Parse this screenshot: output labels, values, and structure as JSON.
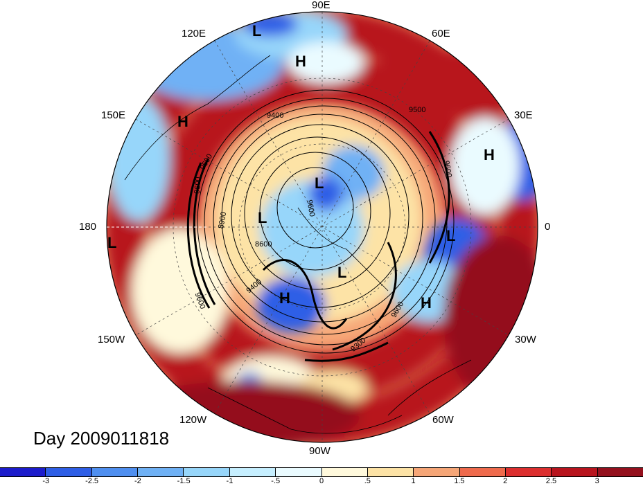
{
  "title": "Day 2009011818",
  "longitude_labels": {
    "lon_90e": "90E",
    "lon_120e": "120E",
    "lon_60e": "60E",
    "lon_150e": "150E",
    "lon_30e": "30E",
    "lon_180": "180",
    "lon_0": "0",
    "lon_150w": "150W",
    "lon_30w": "30W",
    "lon_120w": "120W",
    "lon_60w": "60W",
    "lon_90w": "90W"
  },
  "pressure_centers": [
    {
      "type": "L",
      "label": "L"
    },
    {
      "type": "H",
      "label": "H"
    },
    {
      "type": "H",
      "label": "H"
    },
    {
      "type": "L",
      "label": "L"
    },
    {
      "type": "H",
      "label": "H"
    },
    {
      "type": "L",
      "label": "L"
    },
    {
      "type": "L",
      "label": "L"
    },
    {
      "type": "L",
      "label": "L"
    },
    {
      "type": "L",
      "label": "L"
    },
    {
      "type": "H",
      "label": "H"
    },
    {
      "type": "H",
      "label": "H"
    }
  ],
  "contour_labels": [
    "9400",
    "9500",
    "9600",
    "9600",
    "9600",
    "8900",
    "8600",
    "9400",
    "9600",
    "9300",
    "9600",
    "9600"
  ],
  "colorbar": {
    "ticks": [
      "-3",
      "-2.5",
      "-2",
      "-1.5",
      "-1",
      "-.5",
      "0",
      ".5",
      "1",
      "1.5",
      "2",
      "2.5",
      "3"
    ],
    "colors": [
      "#1c1ccc",
      "#2e5ee6",
      "#4f8ff0",
      "#6fb1f5",
      "#97d6fa",
      "#c6efff",
      "#eafbff",
      "#fff9dc",
      "#fde3a6",
      "#f6a677",
      "#ef6a4c",
      "#dc2e2e",
      "#b8141d",
      "#94101d"
    ]
  }
}
